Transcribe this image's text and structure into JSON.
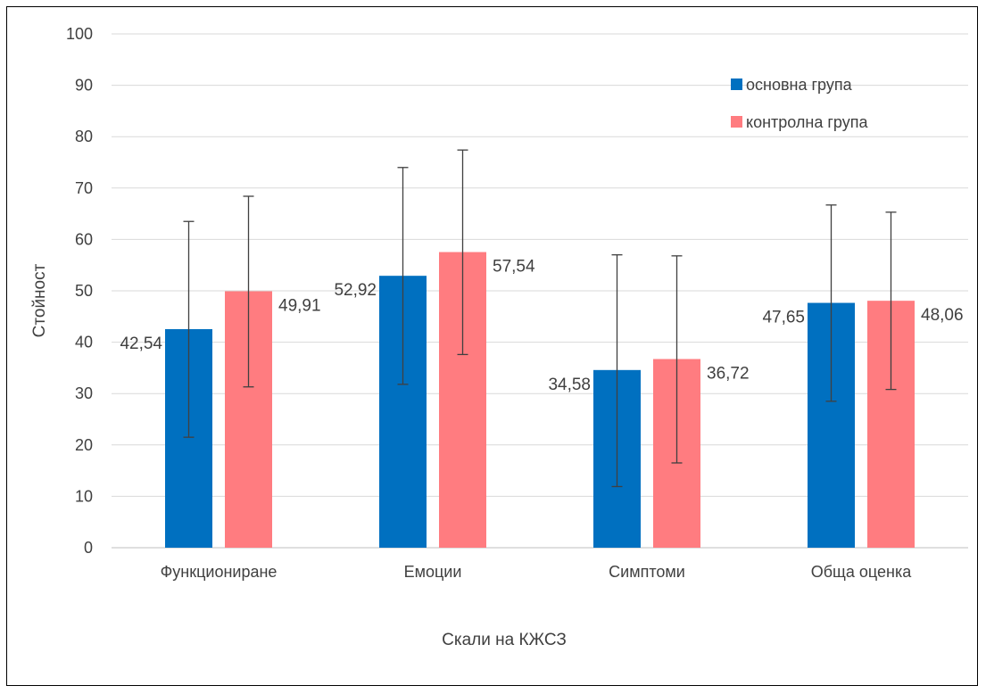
{
  "chart_data": {
    "type": "bar",
    "title": "",
    "xlabel": "Скали на КЖСЗ",
    "ylabel": "Стойност",
    "ylim": [
      0,
      100
    ],
    "yticks": [
      0,
      10,
      20,
      30,
      40,
      50,
      60,
      70,
      80,
      90,
      100
    ],
    "ytick_labels": [
      "0",
      "10",
      "20",
      "30",
      "40",
      "50",
      "60",
      "70",
      "80",
      "90",
      "100"
    ],
    "grid": true,
    "legend_position": "top-right",
    "categories": [
      "Функциониране",
      "Емоции",
      "Симптоми",
      "Обща оценка"
    ],
    "series": [
      {
        "name": "основна група",
        "color": "#0070c0",
        "values": [
          42.54,
          52.92,
          34.58,
          47.65
        ],
        "labels": [
          "42,54",
          "52,92",
          "34,58",
          "47,65"
        ],
        "error_low": [
          21.5,
          31.8,
          11.9,
          28.5
        ],
        "error_high": [
          63.5,
          74.0,
          57.0,
          66.7
        ]
      },
      {
        "name": "контролна група",
        "color": "#ff7c80",
        "values": [
          49.91,
          57.54,
          36.72,
          48.06
        ],
        "labels": [
          "49,91",
          "57,54",
          "36,72",
          "48,06"
        ],
        "error_low": [
          31.3,
          37.6,
          16.5,
          30.8
        ],
        "error_high": [
          68.4,
          77.4,
          56.8,
          65.3
        ]
      }
    ]
  }
}
